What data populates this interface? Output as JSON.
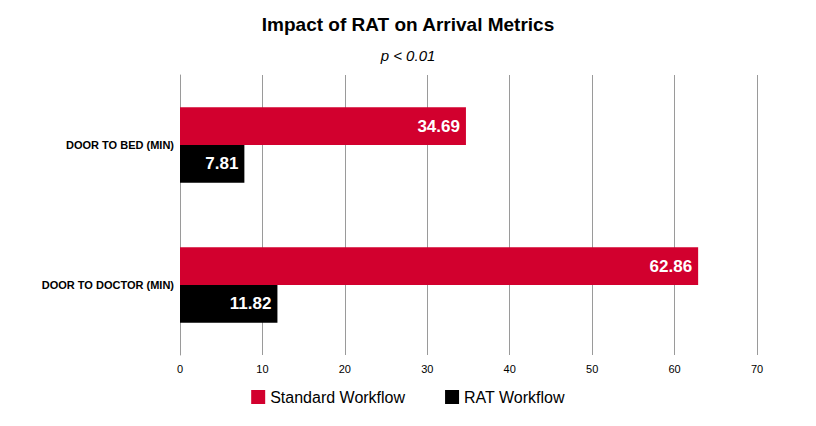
{
  "chart_data": {
    "type": "bar",
    "orientation": "horizontal",
    "title": "Impact of RAT on Arrival Metrics",
    "subtitle": "p < 0.01",
    "categories": [
      "DOOR TO BED (MIN)",
      "DOOR TO DOCTOR (MIN)"
    ],
    "series": [
      {
        "name": "Standard Workflow",
        "color": "#d2002e",
        "values": [
          34.69,
          62.86
        ]
      },
      {
        "name": "RAT Workflow",
        "color": "#000000",
        "values": [
          7.81,
          11.82
        ]
      }
    ],
    "xlim": [
      0,
      70
    ],
    "xticks": [
      0,
      10,
      20,
      30,
      40,
      50,
      60,
      70
    ],
    "grid": true,
    "data_labels": true,
    "legend": "bottom"
  }
}
